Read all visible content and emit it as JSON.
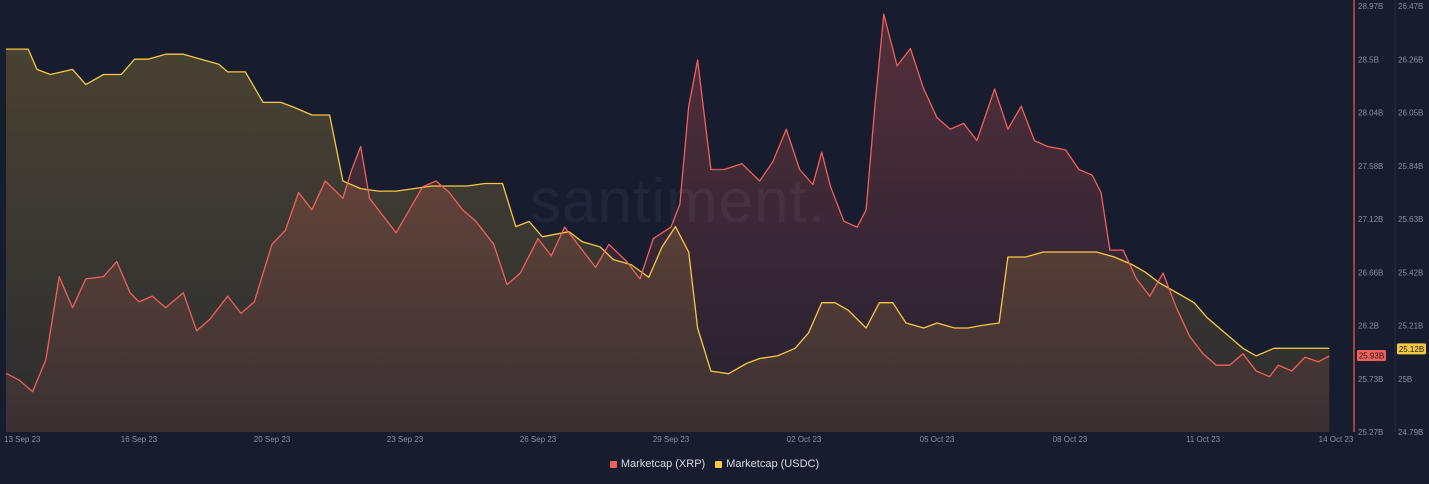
{
  "watermark": "santiment.",
  "colors": {
    "background": "#171c2e",
    "xrp": "#f0605a",
    "usdc": "#f5c842",
    "axis_text": "#8a8f9f"
  },
  "legend": [
    {
      "label": "Marketcap (XRP)",
      "color": "#f0605a"
    },
    {
      "label": "Marketcap (USDC)",
      "color": "#f5c842"
    }
  ],
  "chart_data": {
    "type": "area",
    "x_tick_labels": [
      "13 Sep 23",
      "16 Sep 23",
      "20 Sep 23",
      "23 Sep 23",
      "26 Sep 23",
      "29 Sep 23",
      "02 Oct 23",
      "05 Oct 23",
      "08 Oct 23",
      "11 Oct 23",
      "14 Oct 23"
    ],
    "x_tick_days": [
      0,
      3,
      6,
      9,
      12,
      15,
      18,
      21,
      24,
      27,
      30
    ],
    "xlim": [
      0,
      30
    ],
    "y_left": {
      "ticks": [
        "28.97B",
        "28.5B",
        "28.04B",
        "27.58B",
        "27.12B",
        "26.66B",
        "26.2B",
        "25.73B",
        "25.27B"
      ],
      "ylim": [
        25.27,
        28.97
      ],
      "series": "Marketcap (XRP)",
      "current_label": "25.93B"
    },
    "y_right": {
      "ticks": [
        "26.47B",
        "26.26B",
        "26.05B",
        "25.84B",
        "25.63B",
        "25.42B",
        "25.21B",
        "25B",
        "24.79B"
      ],
      "ylim": [
        24.79,
        26.47
      ],
      "series": "Marketcap (USDC)",
      "current_label": "25.12B"
    },
    "series": [
      {
        "name": "Marketcap (XRP)",
        "axis": "left",
        "color": "#f0605a",
        "points": [
          [
            0,
            25.78
          ],
          [
            0.3,
            25.72
          ],
          [
            0.6,
            25.62
          ],
          [
            0.9,
            25.9
          ],
          [
            1.2,
            26.62
          ],
          [
            1.5,
            26.35
          ],
          [
            1.8,
            26.6
          ],
          [
            2.2,
            26.62
          ],
          [
            2.5,
            26.75
          ],
          [
            2.8,
            26.48
          ],
          [
            3.0,
            26.4
          ],
          [
            3.3,
            26.45
          ],
          [
            3.6,
            26.35
          ],
          [
            4.0,
            26.48
          ],
          [
            4.3,
            26.15
          ],
          [
            4.6,
            26.25
          ],
          [
            5.0,
            26.45
          ],
          [
            5.3,
            26.3
          ],
          [
            5.6,
            26.4
          ],
          [
            6.0,
            26.9
          ],
          [
            6.3,
            27.02
          ],
          [
            6.6,
            27.35
          ],
          [
            6.9,
            27.2
          ],
          [
            7.2,
            27.45
          ],
          [
            7.6,
            27.3
          ],
          [
            7.8,
            27.55
          ],
          [
            8.0,
            27.75
          ],
          [
            8.2,
            27.3
          ],
          [
            8.5,
            27.15
          ],
          [
            8.8,
            27.0
          ],
          [
            9.1,
            27.2
          ],
          [
            9.4,
            27.4
          ],
          [
            9.7,
            27.45
          ],
          [
            10.0,
            27.35
          ],
          [
            10.3,
            27.2
          ],
          [
            10.6,
            27.1
          ],
          [
            11.0,
            26.9
          ],
          [
            11.3,
            26.55
          ],
          [
            11.6,
            26.65
          ],
          [
            12.0,
            26.95
          ],
          [
            12.3,
            26.8
          ],
          [
            12.6,
            27.05
          ],
          [
            13.0,
            26.85
          ],
          [
            13.3,
            26.7
          ],
          [
            13.6,
            26.9
          ],
          [
            14.0,
            26.75
          ],
          [
            14.3,
            26.6
          ],
          [
            14.6,
            26.95
          ],
          [
            15.0,
            27.05
          ],
          [
            15.2,
            27.25
          ],
          [
            15.4,
            28.1
          ],
          [
            15.6,
            28.5
          ],
          [
            15.9,
            27.55
          ],
          [
            16.2,
            27.55
          ],
          [
            16.6,
            27.6
          ],
          [
            17.0,
            27.45
          ],
          [
            17.3,
            27.62
          ],
          [
            17.6,
            27.9
          ],
          [
            17.9,
            27.55
          ],
          [
            18.2,
            27.42
          ],
          [
            18.4,
            27.7
          ],
          [
            18.6,
            27.4
          ],
          [
            18.9,
            27.1
          ],
          [
            19.2,
            27.05
          ],
          [
            19.4,
            27.2
          ],
          [
            19.6,
            28.1
          ],
          [
            19.8,
            28.9
          ],
          [
            20.1,
            28.45
          ],
          [
            20.4,
            28.6
          ],
          [
            20.7,
            28.25
          ],
          [
            21.0,
            28.0
          ],
          [
            21.3,
            27.9
          ],
          [
            21.6,
            27.95
          ],
          [
            21.9,
            27.8
          ],
          [
            22.3,
            28.25
          ],
          [
            22.6,
            27.9
          ],
          [
            22.9,
            28.1
          ],
          [
            23.2,
            27.8
          ],
          [
            23.5,
            27.75
          ],
          [
            23.9,
            27.72
          ],
          [
            24.2,
            27.55
          ],
          [
            24.5,
            27.5
          ],
          [
            24.7,
            27.35
          ],
          [
            24.9,
            26.85
          ],
          [
            25.2,
            26.85
          ],
          [
            25.5,
            26.6
          ],
          [
            25.8,
            26.45
          ],
          [
            26.1,
            26.65
          ],
          [
            26.4,
            26.35
          ],
          [
            26.7,
            26.1
          ],
          [
            27.0,
            25.95
          ],
          [
            27.3,
            25.85
          ],
          [
            27.6,
            25.85
          ],
          [
            27.9,
            25.95
          ],
          [
            28.2,
            25.8
          ],
          [
            28.5,
            25.75
          ],
          [
            28.7,
            25.85
          ],
          [
            29.0,
            25.8
          ],
          [
            29.3,
            25.92
          ],
          [
            29.6,
            25.88
          ],
          [
            29.85,
            25.93
          ]
        ]
      },
      {
        "name": "Marketcap (USDC)",
        "axis": "right",
        "color": "#f5c842",
        "points": [
          [
            0,
            26.3
          ],
          [
            0.5,
            26.3
          ],
          [
            0.7,
            26.22
          ],
          [
            1.0,
            26.2
          ],
          [
            1.5,
            26.22
          ],
          [
            1.8,
            26.16
          ],
          [
            2.2,
            26.2
          ],
          [
            2.6,
            26.2
          ],
          [
            2.9,
            26.26
          ],
          [
            3.2,
            26.26
          ],
          [
            3.6,
            26.28
          ],
          [
            4.0,
            26.28
          ],
          [
            4.4,
            26.26
          ],
          [
            4.8,
            26.24
          ],
          [
            5.0,
            26.21
          ],
          [
            5.4,
            26.21
          ],
          [
            5.8,
            26.09
          ],
          [
            6.2,
            26.09
          ],
          [
            6.5,
            26.07
          ],
          [
            6.9,
            26.04
          ],
          [
            7.3,
            26.04
          ],
          [
            7.6,
            25.78
          ],
          [
            8.0,
            25.75
          ],
          [
            8.4,
            25.74
          ],
          [
            8.8,
            25.74
          ],
          [
            9.2,
            25.75
          ],
          [
            9.6,
            25.76
          ],
          [
            10.0,
            25.76
          ],
          [
            10.4,
            25.76
          ],
          [
            10.8,
            25.77
          ],
          [
            11.2,
            25.77
          ],
          [
            11.5,
            25.6
          ],
          [
            11.8,
            25.62
          ],
          [
            12.1,
            25.56
          ],
          [
            12.4,
            25.57
          ],
          [
            12.7,
            25.58
          ],
          [
            13.0,
            25.54
          ],
          [
            13.4,
            25.52
          ],
          [
            13.7,
            25.47
          ],
          [
            14.1,
            25.45
          ],
          [
            14.5,
            25.4
          ],
          [
            14.8,
            25.52
          ],
          [
            15.1,
            25.6
          ],
          [
            15.4,
            25.5
          ],
          [
            15.6,
            25.2
          ],
          [
            15.9,
            25.03
          ],
          [
            16.3,
            25.02
          ],
          [
            16.7,
            25.06
          ],
          [
            17.0,
            25.08
          ],
          [
            17.4,
            25.09
          ],
          [
            17.8,
            25.12
          ],
          [
            18.1,
            25.18
          ],
          [
            18.4,
            25.3
          ],
          [
            18.7,
            25.3
          ],
          [
            19.0,
            25.27
          ],
          [
            19.4,
            25.2
          ],
          [
            19.7,
            25.3
          ],
          [
            20.0,
            25.3
          ],
          [
            20.3,
            25.22
          ],
          [
            20.7,
            25.2
          ],
          [
            21.0,
            25.22
          ],
          [
            21.4,
            25.2
          ],
          [
            21.7,
            25.2
          ],
          [
            22.0,
            25.21
          ],
          [
            22.4,
            25.22
          ],
          [
            22.6,
            25.48
          ],
          [
            23.0,
            25.48
          ],
          [
            23.4,
            25.5
          ],
          [
            23.8,
            25.5
          ],
          [
            24.2,
            25.5
          ],
          [
            24.6,
            25.5
          ],
          [
            25.0,
            25.48
          ],
          [
            25.4,
            25.45
          ],
          [
            25.7,
            25.42
          ],
          [
            26.0,
            25.38
          ],
          [
            26.4,
            25.34
          ],
          [
            26.8,
            25.3
          ],
          [
            27.1,
            25.24
          ],
          [
            27.5,
            25.18
          ],
          [
            27.9,
            25.12
          ],
          [
            28.2,
            25.09
          ],
          [
            28.6,
            25.12
          ],
          [
            29.0,
            25.12
          ],
          [
            29.4,
            25.12
          ],
          [
            29.85,
            25.12
          ]
        ]
      }
    ]
  }
}
